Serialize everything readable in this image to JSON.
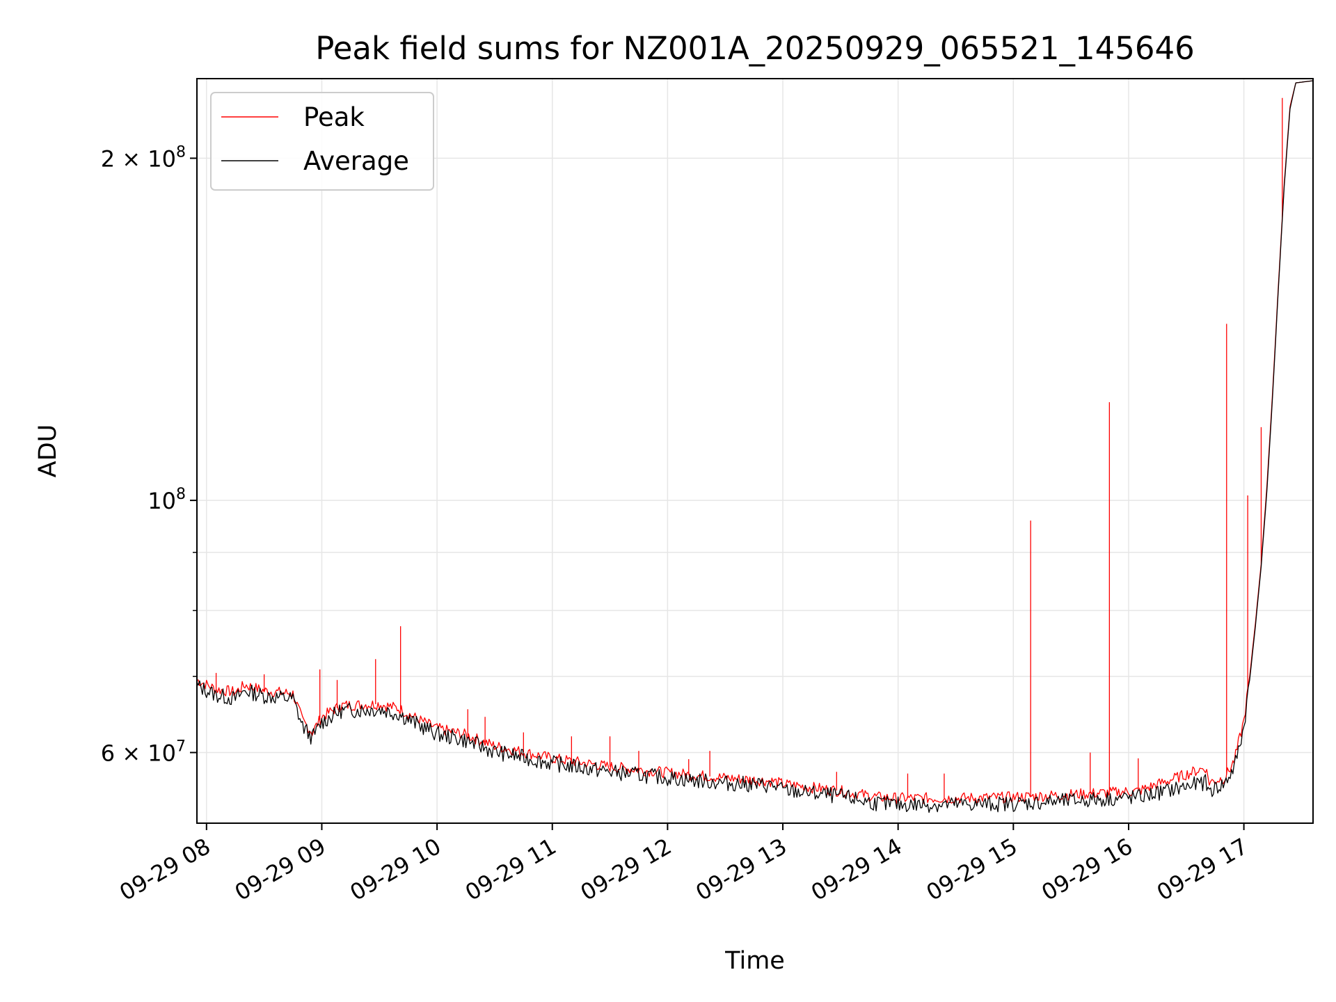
{
  "chart_data": {
    "type": "line",
    "title": "Peak field sums for NZ001A_20250929_065521_145646",
    "xlabel": "Time",
    "ylabel": "ADU",
    "y_scale": "log",
    "ylim": [
      52000000,
      235000000
    ],
    "xlim": [
      "2025-09-29T07:55",
      "2025-09-29T17:36"
    ],
    "x_ticks": [
      {
        "label": "09-29 08",
        "value": "2025-09-29T08:00"
      },
      {
        "label": "09-29 09",
        "value": "2025-09-29T09:00"
      },
      {
        "label": "09-29 10",
        "value": "2025-09-29T10:00"
      },
      {
        "label": "09-29 11",
        "value": "2025-09-29T11:00"
      },
      {
        "label": "09-29 12",
        "value": "2025-09-29T12:00"
      },
      {
        "label": "09-29 13",
        "value": "2025-09-29T13:00"
      },
      {
        "label": "09-29 14",
        "value": "2025-09-29T14:00"
      },
      {
        "label": "09-29 15",
        "value": "2025-09-29T15:00"
      },
      {
        "label": "09-29 16",
        "value": "2025-09-29T16:00"
      },
      {
        "label": "09-29 17",
        "value": "2025-09-29T17:00"
      }
    ],
    "y_major_ticks": [
      {
        "value": 60000000,
        "mantissa": "6",
        "base": "10",
        "exponent": "7"
      },
      {
        "value": 100000000,
        "mantissa": "",
        "base": "10",
        "exponent": "8"
      },
      {
        "value": 200000000,
        "mantissa": "2",
        "base": "10",
        "exponent": "8"
      }
    ],
    "y_minor_ticks": [
      70000000,
      80000000,
      90000000
    ],
    "grid": true,
    "legend_position": "top-left",
    "series": [
      {
        "name": "Peak",
        "color": "#ff0000",
        "points": [
          [
            "2025-09-29T07:55",
            69500000
          ],
          [
            "2025-09-29T08:05",
            68200000
          ],
          [
            "2025-09-29T08:15",
            67800000
          ],
          [
            "2025-09-29T08:20",
            68800000
          ],
          [
            "2025-09-29T08:30",
            68000000
          ],
          [
            "2025-09-29T08:45",
            67600000
          ],
          [
            "2025-09-29T08:50",
            64000000
          ],
          [
            "2025-09-29T08:55",
            62500000
          ],
          [
            "2025-09-29T09:00",
            64500000
          ],
          [
            "2025-09-29T09:10",
            66000000
          ],
          [
            "2025-09-29T09:30",
            66200000
          ],
          [
            "2025-09-29T09:40",
            65600000
          ],
          [
            "2025-09-29T09:50",
            64200000
          ],
          [
            "2025-09-29T10:00",
            63000000
          ],
          [
            "2025-09-29T10:15",
            62200000
          ],
          [
            "2025-09-29T10:30",
            60800000
          ],
          [
            "2025-09-29T11:00",
            59300000
          ],
          [
            "2025-09-29T11:30",
            58300000
          ],
          [
            "2025-09-29T12:00",
            57600000
          ],
          [
            "2025-09-29T12:30",
            57000000
          ],
          [
            "2025-09-29T12:55",
            56600000
          ],
          [
            "2025-09-29T13:00",
            56300000
          ],
          [
            "2025-09-29T13:30",
            55500000
          ],
          [
            "2025-09-29T13:50",
            54800000
          ],
          [
            "2025-09-29T14:00",
            54700000
          ],
          [
            "2025-09-29T14:30",
            54700000
          ],
          [
            "2025-09-29T15:00",
            54800000
          ],
          [
            "2025-09-29T15:30",
            55100000
          ],
          [
            "2025-09-29T16:05",
            55500000
          ],
          [
            "2025-09-29T16:40",
            58200000
          ],
          [
            "2025-09-29T16:42",
            56500000
          ],
          [
            "2025-09-29T16:50",
            57000000
          ],
          [
            "2025-09-29T16:55",
            59000000
          ],
          [
            "2025-09-29T17:00",
            64000000
          ],
          [
            "2025-09-29T17:03",
            70000000
          ],
          [
            "2025-09-29T17:06",
            78000000
          ],
          [
            "2025-09-29T17:09",
            88000000
          ],
          [
            "2025-09-29T17:12",
            103000000
          ],
          [
            "2025-09-29T17:15",
            125000000
          ],
          [
            "2025-09-29T17:18",
            155000000
          ],
          [
            "2025-09-29T17:21",
            190000000
          ],
          [
            "2025-09-29T17:24",
            222000000
          ],
          [
            "2025-09-29T17:27",
            233000000
          ],
          [
            "2025-09-29T17:36",
            234000000
          ]
        ],
        "spikes": [
          [
            "2025-09-29T08:05",
            70500000
          ],
          [
            "2025-09-29T08:30",
            70300000
          ],
          [
            "2025-09-29T08:59",
            71000000
          ],
          [
            "2025-09-29T09:08",
            69500000
          ],
          [
            "2025-09-29T09:28",
            72500000
          ],
          [
            "2025-09-29T09:41",
            77500000
          ],
          [
            "2025-09-29T10:16",
            65500000
          ],
          [
            "2025-09-29T10:25",
            64500000
          ],
          [
            "2025-09-29T10:45",
            62500000
          ],
          [
            "2025-09-29T11:10",
            62000000
          ],
          [
            "2025-09-29T11:30",
            62000000
          ],
          [
            "2025-09-29T11:45",
            60200000
          ],
          [
            "2025-09-29T12:11",
            59200000
          ],
          [
            "2025-09-29T12:22",
            60200000
          ],
          [
            "2025-09-29T13:28",
            57700000
          ],
          [
            "2025-09-29T14:05",
            57500000
          ],
          [
            "2025-09-29T14:24",
            57500000
          ],
          [
            "2025-09-29T15:09",
            96000000
          ],
          [
            "2025-09-29T15:40",
            60000000
          ],
          [
            "2025-09-29T15:50",
            122000000
          ],
          [
            "2025-09-29T16:05",
            59300000
          ],
          [
            "2025-09-29T16:51",
            143000000
          ],
          [
            "2025-09-29T17:02",
            101000000
          ],
          [
            "2025-09-29T17:09",
            116000000
          ],
          [
            "2025-09-29T17:20",
            226000000
          ]
        ]
      },
      {
        "name": "Average",
        "color": "#000000",
        "points": [
          [
            "2025-09-29T07:55",
            68700000
          ],
          [
            "2025-09-29T08:05",
            67400000
          ],
          [
            "2025-09-29T08:15",
            66900000
          ],
          [
            "2025-09-29T08:20",
            68000000
          ],
          [
            "2025-09-29T08:30",
            67300000
          ],
          [
            "2025-09-29T08:45",
            66900000
          ],
          [
            "2025-09-29T08:50",
            63300000
          ],
          [
            "2025-09-29T08:55",
            61800000
          ],
          [
            "2025-09-29T09:00",
            63800000
          ],
          [
            "2025-09-29T09:10",
            65300000
          ],
          [
            "2025-09-29T09:30",
            65500000
          ],
          [
            "2025-09-29T09:40",
            64900000
          ],
          [
            "2025-09-29T09:50",
            63500000
          ],
          [
            "2025-09-29T10:00",
            62300000
          ],
          [
            "2025-09-29T10:15",
            61500000
          ],
          [
            "2025-09-29T10:30",
            60100000
          ],
          [
            "2025-09-29T11:00",
            58700000
          ],
          [
            "2025-09-29T11:30",
            57700000
          ],
          [
            "2025-09-29T12:00",
            57000000
          ],
          [
            "2025-09-29T12:30",
            56400000
          ],
          [
            "2025-09-29T12:55",
            56100000
          ],
          [
            "2025-09-29T13:00",
            55600000
          ],
          [
            "2025-09-29T13:30",
            54900000
          ],
          [
            "2025-09-29T13:50",
            54100000
          ],
          [
            "2025-09-29T14:00",
            54000000
          ],
          [
            "2025-09-29T14:30",
            54000000
          ],
          [
            "2025-09-29T15:00",
            54100000
          ],
          [
            "2025-09-29T15:30",
            54400000
          ],
          [
            "2025-09-29T16:05",
            54800000
          ],
          [
            "2025-09-29T16:40",
            56500000
          ],
          [
            "2025-09-29T16:42",
            55500000
          ],
          [
            "2025-09-29T16:50",
            56300000
          ],
          [
            "2025-09-29T16:55",
            58200000
          ],
          [
            "2025-09-29T17:00",
            63200000
          ],
          [
            "2025-09-29T17:03",
            69500000
          ],
          [
            "2025-09-29T17:06",
            77500000
          ],
          [
            "2025-09-29T17:09",
            87500000
          ],
          [
            "2025-09-29T17:12",
            102000000
          ],
          [
            "2025-09-29T17:15",
            124000000
          ],
          [
            "2025-09-29T17:18",
            154000000
          ],
          [
            "2025-09-29T17:21",
            189000000
          ],
          [
            "2025-09-29T17:24",
            221000000
          ],
          [
            "2025-09-29T17:27",
            233000000
          ],
          [
            "2025-09-29T17:36",
            234000000
          ]
        ]
      }
    ]
  }
}
